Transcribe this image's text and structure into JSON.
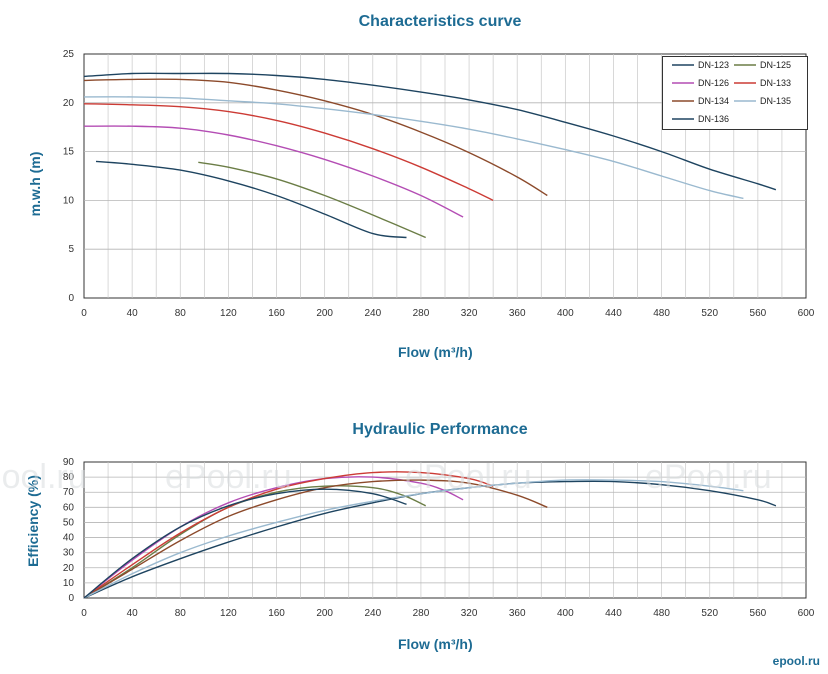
{
  "chart_data": [
    {
      "type": "line",
      "title": "Characteristics curve",
      "xlabel": "Flow (m³/h)",
      "ylabel": "m.w.h (m)",
      "xlim": [
        0,
        600
      ],
      "ylim": [
        0,
        25
      ],
      "xticks": [
        0,
        40,
        80,
        120,
        160,
        200,
        240,
        280,
        320,
        360,
        400,
        440,
        480,
        520,
        560,
        600
      ],
      "yticks": [
        0,
        5,
        10,
        15,
        20,
        25
      ],
      "grid": true,
      "legend": "top-right",
      "series": [
        {
          "name": "DN-123",
          "color": "#1e4460",
          "x": [
            0,
            40,
            80,
            120,
            160,
            200,
            240,
            280,
            320,
            360,
            400,
            440,
            480,
            520,
            560,
            575
          ],
          "y": [
            22.7,
            23.0,
            23.0,
            23.0,
            22.8,
            22.4,
            21.8,
            21.1,
            20.3,
            19.3,
            18.0,
            16.6,
            15.0,
            13.2,
            11.7,
            11.1
          ]
        },
        {
          "name": "DN-125",
          "color": "#6b7d46",
          "x": [
            95,
            120,
            160,
            200,
            240,
            284
          ],
          "y": [
            13.9,
            13.4,
            12.2,
            10.5,
            8.5,
            6.2
          ]
        },
        {
          "name": "DN-126",
          "color": "#b44db4",
          "x": [
            0,
            40,
            80,
            120,
            160,
            200,
            240,
            280,
            315
          ],
          "y": [
            17.6,
            17.6,
            17.4,
            16.7,
            15.6,
            14.2,
            12.5,
            10.5,
            8.3
          ]
        },
        {
          "name": "DN-133",
          "color": "#cc3b35",
          "x": [
            0,
            40,
            80,
            120,
            160,
            200,
            240,
            280,
            320,
            340
          ],
          "y": [
            19.9,
            19.8,
            19.6,
            19.1,
            18.2,
            16.9,
            15.3,
            13.4,
            11.2,
            10.0
          ]
        },
        {
          "name": "DN-134",
          "color": "#8c4a2b",
          "x": [
            0,
            40,
            80,
            120,
            160,
            200,
            240,
            280,
            320,
            360,
            385
          ],
          "y": [
            22.3,
            22.4,
            22.4,
            22.1,
            21.3,
            20.2,
            18.8,
            17.0,
            14.9,
            12.4,
            10.5
          ]
        },
        {
          "name": "DN-135",
          "color": "#9ab9cf",
          "x": [
            0,
            40,
            80,
            120,
            160,
            200,
            240,
            280,
            320,
            360,
            400,
            440,
            480,
            520,
            548
          ],
          "y": [
            20.6,
            20.6,
            20.5,
            20.2,
            19.9,
            19.4,
            18.8,
            18.1,
            17.3,
            16.3,
            15.2,
            14.0,
            12.5,
            11.0,
            10.2
          ]
        },
        {
          "name": "DN-136",
          "color": "#1e4460",
          "x": [
            10,
            40,
            80,
            120,
            160,
            200,
            240,
            268
          ],
          "y": [
            14.0,
            13.7,
            13.1,
            12.0,
            10.5,
            8.6,
            6.6,
            6.2
          ]
        }
      ]
    },
    {
      "type": "line",
      "title": "Hydraulic Performance",
      "xlabel": "Flow (m³/h)",
      "ylabel": "Efficiency (%)",
      "xlim": [
        0,
        600
      ],
      "ylim": [
        0,
        90
      ],
      "xticks": [
        0,
        40,
        80,
        120,
        160,
        200,
        240,
        280,
        320,
        360,
        400,
        440,
        480,
        520,
        560,
        600
      ],
      "yticks": [
        0,
        10,
        20,
        30,
        40,
        50,
        60,
        70,
        80,
        90
      ],
      "grid": true,
      "series": [
        {
          "name": "DN-123",
          "color": "#1e4460",
          "x": [
            0,
            40,
            80,
            120,
            160,
            200,
            240,
            280,
            320,
            360,
            400,
            440,
            480,
            520,
            560,
            575
          ],
          "y": [
            0,
            14,
            26,
            37,
            47,
            56,
            63,
            69,
            73,
            76,
            77,
            77,
            75,
            71,
            65,
            61
          ]
        },
        {
          "name": "DN-125",
          "color": "#6b7d46",
          "x": [
            0,
            40,
            80,
            120,
            160,
            200,
            240,
            265,
            284
          ],
          "y": [
            0,
            20,
            42,
            60,
            70,
            74,
            73,
            68,
            61
          ]
        },
        {
          "name": "DN-126",
          "color": "#b44db4",
          "x": [
            0,
            40,
            80,
            120,
            160,
            200,
            240,
            280,
            300,
            315
          ],
          "y": [
            0,
            25,
            47,
            63,
            73,
            79,
            80,
            76,
            71,
            65
          ]
        },
        {
          "name": "DN-133",
          "color": "#cc3b35",
          "x": [
            0,
            40,
            80,
            120,
            160,
            200,
            240,
            280,
            320,
            340
          ],
          "y": [
            0,
            22,
            43,
            60,
            72,
            79,
            83,
            83,
            79,
            74
          ]
        },
        {
          "name": "DN-134",
          "color": "#8c4a2b",
          "x": [
            0,
            40,
            80,
            120,
            160,
            200,
            240,
            280,
            320,
            360,
            385
          ],
          "y": [
            0,
            19,
            38,
            54,
            65,
            73,
            77,
            78,
            76,
            68,
            60
          ]
        },
        {
          "name": "DN-135",
          "color": "#9ab9cf",
          "x": [
            0,
            40,
            80,
            120,
            160,
            200,
            240,
            280,
            320,
            360,
            400,
            440,
            480,
            520,
            548
          ],
          "y": [
            0,
            16,
            30,
            41,
            50,
            58,
            64,
            69,
            73,
            76,
            78,
            78,
            77,
            74,
            71
          ]
        },
        {
          "name": "DN-136",
          "color": "#1e4460",
          "x": [
            0,
            40,
            80,
            120,
            160,
            200,
            240,
            268
          ],
          "y": [
            0,
            26,
            47,
            61,
            69,
            72,
            69,
            62
          ]
        }
      ]
    }
  ],
  "watermark": {
    "text": "ePool.ru"
  },
  "brand": {
    "text": "epool.ru"
  }
}
